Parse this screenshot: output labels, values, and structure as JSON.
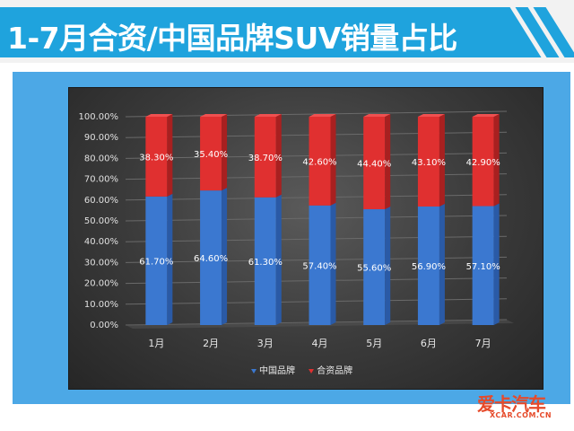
{
  "page": {
    "title": "1-7月合资/中国品牌SUV销量占比",
    "logo_text": "爱卡汽车",
    "logo_sub": "XCAR.COM.CN"
  },
  "chart_data": {
    "type": "bar",
    "stacked": true,
    "categories": [
      "1月",
      "2月",
      "3月",
      "4月",
      "5月",
      "6月",
      "7月"
    ],
    "series": [
      {
        "name": "中国品牌",
        "values": [
          61.7,
          64.6,
          61.3,
          57.4,
          55.6,
          56.9,
          57.1
        ],
        "labels": [
          "61.70%",
          "64.60%",
          "61.30%",
          "57.40%",
          "55.60%",
          "56.90%",
          "57.10%"
        ],
        "color": "#3b78d0"
      },
      {
        "name": "合资品牌",
        "values": [
          38.3,
          35.4,
          38.7,
          42.6,
          44.4,
          43.1,
          42.9
        ],
        "labels": [
          "38.30%",
          "35.40%",
          "38.70%",
          "42.60%",
          "44.40%",
          "43.10%",
          "42.90%"
        ],
        "color": "#e03030"
      }
    ],
    "ylim": [
      0,
      100
    ],
    "yticks": [
      "0.00%",
      "10.00%",
      "20.00%",
      "30.00%",
      "40.00%",
      "50.00%",
      "60.00%",
      "70.00%",
      "80.00%",
      "90.00%",
      "100.00%"
    ],
    "grid": true,
    "legend_position": "bottom",
    "title": "",
    "xlabel": "",
    "ylabel": ""
  }
}
